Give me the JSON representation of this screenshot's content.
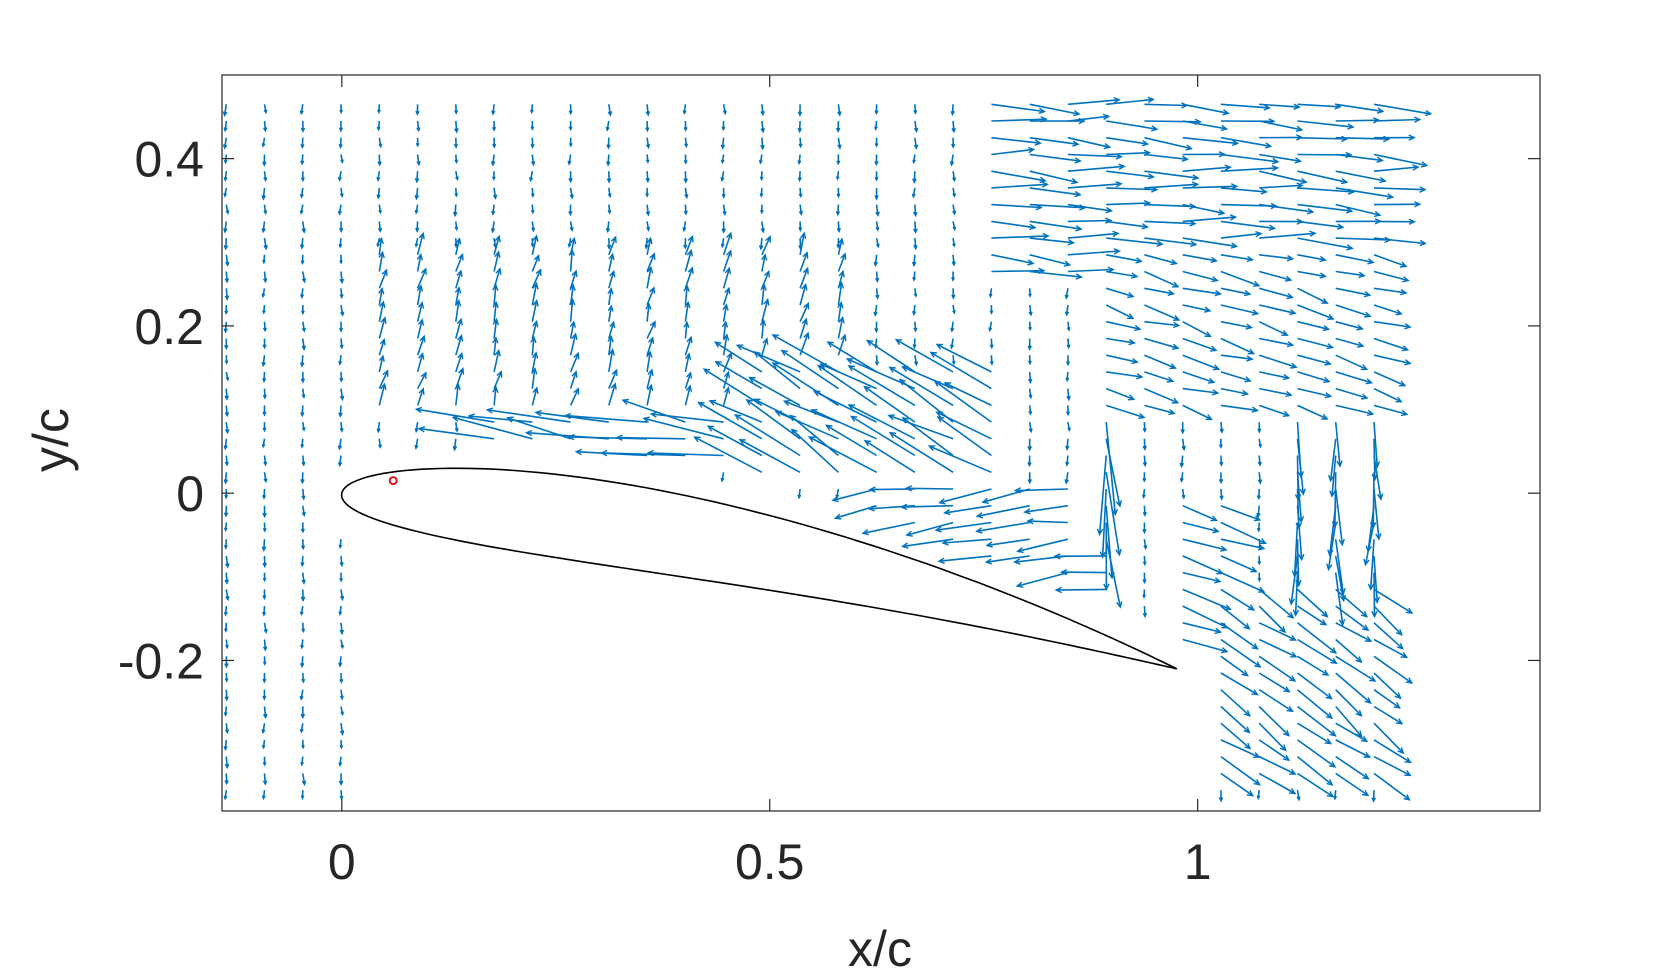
{
  "chart_data": {
    "type": "quiver",
    "title": "",
    "xlabel": "x/c",
    "ylabel": "y/c",
    "xlim": [
      -0.14,
      1.4
    ],
    "ylim": [
      -0.38,
      0.5
    ],
    "xticks": [
      0,
      0.5,
      1
    ],
    "xtick_labels": [
      "0",
      "0.5",
      "1"
    ],
    "yticks": [
      0.4,
      0.2,
      0,
      -0.2
    ],
    "ytick_labels": [
      "0.4",
      "0.2",
      "0",
      "-0.2"
    ],
    "box": true,
    "grid": false,
    "legend": "none",
    "colors": {
      "vectors": "#0072BD",
      "airfoil": "#000000",
      "marker": "#e00000",
      "axes": "#262626"
    },
    "airfoil": {
      "leading_edge": [
        0,
        0
      ],
      "trailing_edge": [
        0.975,
        -0.21
      ],
      "chord": 0.998,
      "rotation_deg": 12.15,
      "thickness_ratio": 0.1,
      "camber": 0.035
    },
    "marker": {
      "x": 0.06,
      "y": 0.015,
      "shape": "circle"
    },
    "vector_grid": {
      "x_start": -0.135,
      "x_spacing": 0.0447,
      "nx": 31,
      "y_start": 0.465,
      "y_spacing": -0.02,
      "ny": 42,
      "field": [
        {
          "kind": "uniform",
          "x": [
            -0.14,
            1.25
          ],
          "y": [
            -0.4,
            0.5
          ],
          "u": 0.0,
          "v": -0.006
        },
        {
          "kind": "uniform",
          "x": [
            0.75,
            1.25
          ],
          "y": [
            0.25,
            0.5
          ],
          "u": 0.03,
          "v": -0.002
        },
        {
          "kind": "uniform",
          "x": [
            0.85,
            1.25
          ],
          "y": [
            0.1,
            0.3
          ],
          "u": 0.02,
          "v": -0.006
        },
        {
          "kind": "uniform",
          "x": [
            0.0,
            0.6
          ],
          "y": [
            0.1,
            0.3
          ],
          "u": 0.003,
          "v": 0.012
        },
        {
          "kind": "uniform",
          "x": [
            0.15,
            0.55
          ],
          "y": [
            0.03,
            0.1
          ],
          "u": -0.045,
          "v": 0.006
        },
        {
          "kind": "uniform",
          "x": [
            0.45,
            0.8
          ],
          "y": [
            0.02,
            0.16
          ],
          "u": -0.035,
          "v": 0.02
        },
        {
          "kind": "uniform",
          "x": [
            0.6,
            0.9
          ],
          "y": [
            -0.14,
            0.02
          ],
          "u": -0.03,
          "v": -0.004
        },
        {
          "kind": "uniform",
          "x": [
            0.95,
            1.05
          ],
          "y": [
            -0.2,
            0.0
          ],
          "u": 0.025,
          "v": -0.01
        },
        {
          "kind": "uniform",
          "x": [
            1.02,
            1.25
          ],
          "y": [
            -0.35,
            -0.1
          ],
          "u": 0.02,
          "v": -0.015
        },
        {
          "kind": "uniform",
          "x": [
            1.1,
            1.25
          ],
          "y": [
            -0.1,
            0.1
          ],
          "u": 0.0,
          "v": -0.03
        },
        {
          "kind": "uniform",
          "x": [
            0.86,
            0.9
          ],
          "y": [
            -0.06,
            0.1
          ],
          "u": 0.0,
          "v": -0.05
        }
      ]
    }
  }
}
